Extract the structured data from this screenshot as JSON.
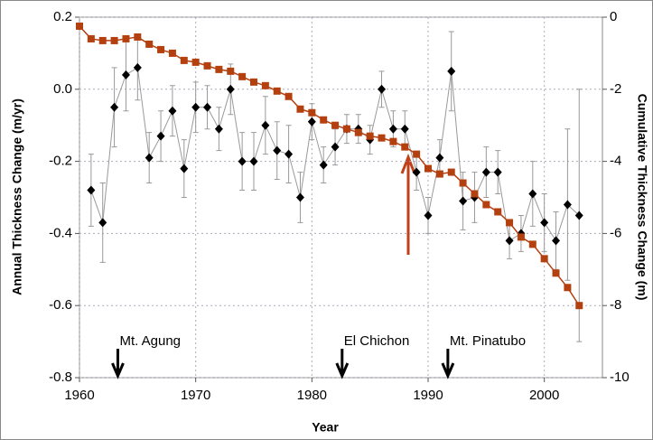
{
  "chart_data": {
    "type": "line",
    "xlabel": "Year",
    "ylabel": "Annual Thickness Change (m/yr)",
    "y2label": "Cumulative Thickness Change (m)",
    "xlim": [
      1960,
      2005
    ],
    "xticks": [
      1960,
      1970,
      1980,
      1990,
      2000
    ],
    "ylim": [
      -0.8,
      0.2
    ],
    "yticks": [
      0.2,
      {
        "value": 0,
        "label": "0.0"
      },
      -0.2,
      -0.4,
      -0.6,
      -0.8
    ],
    "y2lim": [
      -10,
      0
    ],
    "y2ticks": [
      0,
      -2,
      -4,
      -6,
      -8,
      -10
    ],
    "grid": true,
    "series": [
      {
        "color": "#000000",
        "line_color": "#999999",
        "marker": "diamond",
        "x": [
          1961,
          1962,
          1963,
          1964,
          1965,
          1966,
          1967,
          1968,
          1969,
          1970,
          1971,
          1972,
          1973,
          1974,
          1975,
          1976,
          1977,
          1978,
          1979,
          1980,
          1981,
          1982,
          1983,
          1984,
          1985,
          1986,
          1987,
          1988,
          1989,
          1990,
          1991,
          1992,
          1993,
          1994,
          1995,
          1996,
          1997,
          1998,
          1999,
          2000,
          2001,
          2002,
          2003
        ],
        "values": [
          -0.28,
          -0.37,
          -0.05,
          0.04,
          0.06,
          -0.19,
          -0.13,
          -0.06,
          -0.22,
          -0.05,
          -0.05,
          -0.11,
          0.0,
          -0.2,
          -0.2,
          -0.1,
          -0.17,
          -0.18,
          -0.3,
          -0.09,
          -0.21,
          -0.16,
          -0.11,
          -0.11,
          -0.14,
          0.0,
          -0.11,
          -0.11,
          -0.23,
          -0.35,
          -0.19,
          0.05,
          -0.31,
          -0.3,
          -0.23,
          -0.23,
          -0.42,
          -0.4,
          -0.29,
          -0.37,
          -0.42,
          -0.32,
          -0.35
        ],
        "errors": [
          0.1,
          0.11,
          0.11,
          0.1,
          0.09,
          0.07,
          0.07,
          0.07,
          0.08,
          0.07,
          0.06,
          0.06,
          0.07,
          0.08,
          0.08,
          0.08,
          0.08,
          0.08,
          0.07,
          0.05,
          0.05,
          0.05,
          0.04,
          0.04,
          0.04,
          0.05,
          0.05,
          0.05,
          0.05,
          0.05,
          0.05,
          0.11,
          0.08,
          0.07,
          0.07,
          0.06,
          0.05,
          0.05,
          0.09,
          0.08,
          0.08,
          0.21,
          0.35
        ]
      },
      {
        "color": "#b5400f",
        "line_color": "#b5400f",
        "marker": "square",
        "axis": "y2",
        "x": [
          1960,
          1961,
          1962,
          1963,
          1964,
          1965,
          1966,
          1967,
          1968,
          1969,
          1970,
          1971,
          1972,
          1973,
          1974,
          1975,
          1976,
          1977,
          1978,
          1979,
          1980,
          1981,
          1982,
          1983,
          1984,
          1985,
          1986,
          1987,
          1988,
          1989,
          1990,
          1991,
          1992,
          1993,
          1994,
          1995,
          1996,
          1997,
          1998,
          1999,
          2000,
          2001,
          2002,
          2003
        ],
        "values": [
          -0.25,
          -0.6,
          -0.65,
          -0.65,
          -0.6,
          -0.55,
          -0.75,
          -0.9,
          -1.0,
          -1.2,
          -1.25,
          -1.35,
          -1.45,
          -1.5,
          -1.65,
          -1.8,
          -1.9,
          -2.05,
          -2.2,
          -2.55,
          -2.65,
          -2.85,
          -3.0,
          -3.1,
          -3.2,
          -3.3,
          -3.35,
          -3.45,
          -3.6,
          -3.8,
          -4.2,
          -4.35,
          -4.3,
          -4.6,
          -4.9,
          -5.2,
          -5.4,
          -5.7,
          -6.1,
          -6.3,
          -6.7,
          -7.1,
          -7.5,
          -8.0
        ]
      }
    ],
    "annotations": [
      {
        "text": "Mt. Agung",
        "x": 1963.3
      },
      {
        "text": "El Chichon",
        "x": 1982.6
      },
      {
        "text": "Mt. Pinatubo",
        "x": 1991.7
      }
    ]
  }
}
